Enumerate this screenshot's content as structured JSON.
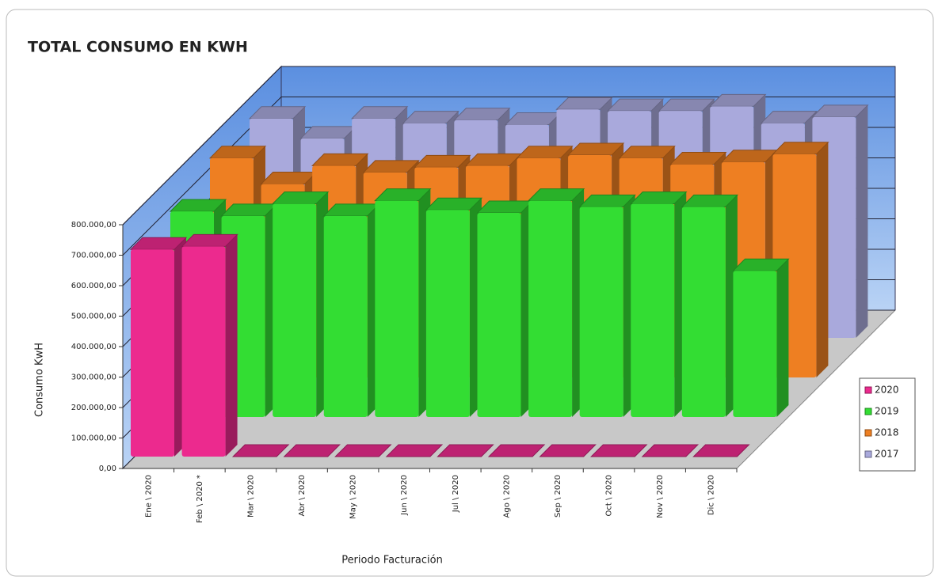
{
  "chart_data": {
    "type": "bar3d",
    "title": "TOTAL CONSUMO EN KWH",
    "y_label": "Consumo KwH",
    "x_label": "Periodo Facturación",
    "categories": [
      "Ene \\ 2020",
      "Feb \\ 2020 *",
      "Mar \\ 2020",
      "Abr \\ 2020",
      "May \\ 2020",
      "Jun \\ 2020",
      "Jul \\ 2020",
      "Ago \\ 2020",
      "Sep \\ 2020",
      "Oct \\ 2020",
      "Nov \\ 2020",
      "Dic \\ 2020"
    ],
    "series": [
      {
        "name": "2020",
        "color": "#ec2a8e",
        "values": [
          680000,
          690000,
          0,
          0,
          0,
          0,
          0,
          0,
          0,
          0,
          0,
          0
        ]
      },
      {
        "name": "2019",
        "color": "#33dd33",
        "values": [
          675000,
          660000,
          700000,
          660000,
          710000,
          680000,
          670000,
          710000,
          690000,
          700000,
          690000,
          480000
        ]
      },
      {
        "name": "2018",
        "color": "#ee7f22",
        "values": [
          720000,
          635000,
          695000,
          673000,
          690000,
          695000,
          720000,
          730000,
          720000,
          700000,
          707000,
          733000
        ]
      },
      {
        "name": "2017",
        "color": "#a9a9dc",
        "values": [
          720000,
          655000,
          720000,
          705000,
          715000,
          700000,
          750000,
          745000,
          745000,
          760000,
          705000,
          725000
        ]
      }
    ],
    "ylim": [
      0,
      800000
    ],
    "yticks": [
      {
        "value": 0,
        "label": "0,00"
      },
      {
        "value": 100000,
        "label": "100.000,00"
      },
      {
        "value": 200000,
        "label": "200.000,00"
      },
      {
        "value": 300000,
        "label": "300.000,00"
      },
      {
        "value": 400000,
        "label": "400.000,00"
      },
      {
        "value": 500000,
        "label": "500.000,00"
      },
      {
        "value": 600000,
        "label": "600.000,00"
      },
      {
        "value": 700000,
        "label": "700.000,00"
      },
      {
        "value": 800000,
        "label": "800.000,00"
      }
    ],
    "grid": true,
    "legend": "right"
  }
}
